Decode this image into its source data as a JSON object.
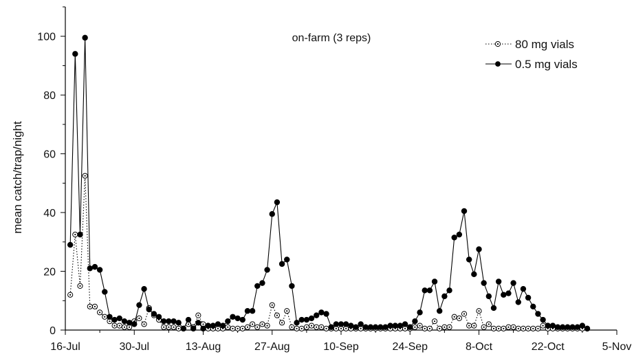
{
  "chart_data": {
    "type": "line",
    "annotation": "on-farm (3 reps)",
    "ylabel": "mean catch/trap/night",
    "xlabel": "",
    "xlim": [
      "2000-07-16",
      "2000-11-05"
    ],
    "ylim": [
      0,
      110
    ],
    "xticks": [
      {
        "date": "2000-07-16",
        "label": "16-Jul"
      },
      {
        "date": "2000-07-30",
        "label": "30-Jul"
      },
      {
        "date": "2000-08-13",
        "label": "13-Aug"
      },
      {
        "date": "2000-08-27",
        "label": "27-Aug"
      },
      {
        "date": "2000-09-10",
        "label": "10-Sep"
      },
      {
        "date": "2000-09-24",
        "label": "24-Sep"
      },
      {
        "date": "2000-10-08",
        "label": "8-Oct"
      },
      {
        "date": "2000-10-22",
        "label": "22-Oct"
      },
      {
        "date": "2000-11-05",
        "label": "5-Nov"
      }
    ],
    "yticks": [
      0,
      20,
      40,
      60,
      80,
      100
    ],
    "legend_position": "top-right",
    "grid": false,
    "series": [
      {
        "name": "80 mg vials",
        "style": "dotted",
        "marker": "open-circle",
        "color": "#000000",
        "points": [
          [
            "2000-07-17",
            12
          ],
          [
            "2000-07-18",
            32.5
          ],
          [
            "2000-07-19",
            15
          ],
          [
            "2000-07-20",
            52.5
          ],
          [
            "2000-07-21",
            8
          ],
          [
            "2000-07-22",
            8
          ],
          [
            "2000-07-23",
            6
          ],
          [
            "2000-07-24",
            4.5
          ],
          [
            "2000-07-25",
            3
          ],
          [
            "2000-07-26",
            1.5
          ],
          [
            "2000-07-27",
            1.5
          ],
          [
            "2000-07-28",
            1
          ],
          [
            "2000-07-29",
            1
          ],
          [
            "2000-07-30",
            3
          ],
          [
            "2000-07-31",
            4
          ],
          [
            "2000-08-01",
            2
          ],
          [
            "2000-08-02",
            7.5
          ],
          [
            "2000-08-03",
            5
          ],
          [
            "2000-08-04",
            3.5
          ],
          [
            "2000-08-05",
            1
          ],
          [
            "2000-08-06",
            1
          ],
          [
            "2000-08-07",
            1
          ],
          [
            "2000-08-08",
            0.5
          ],
          [
            "2000-08-09",
            0.5
          ],
          [
            "2000-08-10",
            2
          ],
          [
            "2000-08-11",
            1
          ],
          [
            "2000-08-12",
            5
          ],
          [
            "2000-08-13",
            2
          ],
          [
            "2000-08-14",
            0.5
          ],
          [
            "2000-08-15",
            0.5
          ],
          [
            "2000-08-16",
            0.5
          ],
          [
            "2000-08-17",
            0.5
          ],
          [
            "2000-08-18",
            1
          ],
          [
            "2000-08-19",
            0.5
          ],
          [
            "2000-08-20",
            0.5
          ],
          [
            "2000-08-21",
            0.5
          ],
          [
            "2000-08-22",
            1
          ],
          [
            "2000-08-23",
            2
          ],
          [
            "2000-08-24",
            1
          ],
          [
            "2000-08-25",
            2
          ],
          [
            "2000-08-26",
            1.5
          ],
          [
            "2000-08-27",
            8.5
          ],
          [
            "2000-08-28",
            5
          ],
          [
            "2000-08-29",
            2.5
          ],
          [
            "2000-08-30",
            6.5
          ],
          [
            "2000-08-31",
            1
          ],
          [
            "2000-09-01",
            0.5
          ],
          [
            "2000-09-02",
            0.5
          ],
          [
            "2000-09-03",
            1
          ],
          [
            "2000-09-04",
            1.5
          ],
          [
            "2000-09-05",
            1
          ],
          [
            "2000-09-06",
            1
          ],
          [
            "2000-09-07",
            0.5
          ],
          [
            "2000-09-08",
            0.5
          ],
          [
            "2000-09-09",
            0.5
          ],
          [
            "2000-09-10",
            0.5
          ],
          [
            "2000-09-11",
            0.5
          ],
          [
            "2000-09-12",
            0.5
          ],
          [
            "2000-09-13",
            0.5
          ],
          [
            "2000-09-14",
            0.5
          ],
          [
            "2000-09-15",
            0.5
          ],
          [
            "2000-09-16",
            0.5
          ],
          [
            "2000-09-17",
            0.5
          ],
          [
            "2000-09-18",
            0.5
          ],
          [
            "2000-09-19",
            0.5
          ],
          [
            "2000-09-20",
            0.5
          ],
          [
            "2000-09-21",
            0.5
          ],
          [
            "2000-09-22",
            0.5
          ],
          [
            "2000-09-23",
            0.5
          ],
          [
            "2000-09-24",
            0.5
          ],
          [
            "2000-09-25",
            1
          ],
          [
            "2000-09-26",
            1.5
          ],
          [
            "2000-09-27",
            0.5
          ],
          [
            "2000-09-28",
            0.5
          ],
          [
            "2000-09-29",
            3
          ],
          [
            "2000-09-30",
            0.5
          ],
          [
            "2000-10-01",
            1
          ],
          [
            "2000-10-02",
            1
          ],
          [
            "2000-10-03",
            4.5
          ],
          [
            "2000-10-04",
            4
          ],
          [
            "2000-10-05",
            5.5
          ],
          [
            "2000-10-06",
            1.5
          ],
          [
            "2000-10-07",
            1.5
          ],
          [
            "2000-10-08",
            6.5
          ],
          [
            "2000-10-09",
            1
          ],
          [
            "2000-10-10",
            2
          ],
          [
            "2000-10-11",
            0.5
          ],
          [
            "2000-10-12",
            0.5
          ],
          [
            "2000-10-13",
            0.5
          ],
          [
            "2000-10-14",
            1
          ],
          [
            "2000-10-15",
            1
          ],
          [
            "2000-10-16",
            0.5
          ],
          [
            "2000-10-17",
            0.5
          ],
          [
            "2000-10-18",
            0.5
          ],
          [
            "2000-10-19",
            0.5
          ],
          [
            "2000-10-20",
            0.5
          ],
          [
            "2000-10-21",
            1.5
          ],
          [
            "2000-10-22",
            0.5
          ],
          [
            "2000-10-23",
            0.5
          ],
          [
            "2000-10-24",
            0.5
          ],
          [
            "2000-10-25",
            0.5
          ],
          [
            "2000-10-26",
            0.5
          ],
          [
            "2000-10-27",
            0.5
          ],
          [
            "2000-10-28",
            0.5
          ],
          [
            "2000-10-29",
            0.5
          ],
          [
            "2000-10-30",
            0.5
          ]
        ]
      },
      {
        "name": "0.5 mg vials",
        "style": "solid",
        "marker": "filled-circle",
        "color": "#000000",
        "points": [
          [
            "2000-07-17",
            29
          ],
          [
            "2000-07-18",
            94
          ],
          [
            "2000-07-19",
            32.5
          ],
          [
            "2000-07-20",
            99.5
          ],
          [
            "2000-07-21",
            21
          ],
          [
            "2000-07-22",
            21.5
          ],
          [
            "2000-07-23",
            20.5
          ],
          [
            "2000-07-24",
            13
          ],
          [
            "2000-07-25",
            4.5
          ],
          [
            "2000-07-26",
            3.5
          ],
          [
            "2000-07-27",
            4
          ],
          [
            "2000-07-28",
            3
          ],
          [
            "2000-07-29",
            2.5
          ],
          [
            "2000-07-30",
            2
          ],
          [
            "2000-07-31",
            8.5
          ],
          [
            "2000-08-01",
            14
          ],
          [
            "2000-08-02",
            7
          ],
          [
            "2000-08-03",
            5.5
          ],
          [
            "2000-08-04",
            4.5
          ],
          [
            "2000-08-05",
            3
          ],
          [
            "2000-08-06",
            3
          ],
          [
            "2000-08-07",
            3
          ],
          [
            "2000-08-08",
            2.5
          ],
          [
            "2000-08-09",
            0.5
          ],
          [
            "2000-08-10",
            3.5
          ],
          [
            "2000-08-11",
            0.5
          ],
          [
            "2000-08-12",
            2.5
          ],
          [
            "2000-08-13",
            0.5
          ],
          [
            "2000-08-14",
            1.5
          ],
          [
            "2000-08-15",
            1.5
          ],
          [
            "2000-08-16",
            2
          ],
          [
            "2000-08-17",
            1.5
          ],
          [
            "2000-08-18",
            3
          ],
          [
            "2000-08-19",
            4.5
          ],
          [
            "2000-08-20",
            4
          ],
          [
            "2000-08-21",
            3.5
          ],
          [
            "2000-08-22",
            6.5
          ],
          [
            "2000-08-23",
            6.5
          ],
          [
            "2000-08-24",
            15
          ],
          [
            "2000-08-25",
            16
          ],
          [
            "2000-08-26",
            20.5
          ],
          [
            "2000-08-27",
            39.5
          ],
          [
            "2000-08-28",
            43.5
          ],
          [
            "2000-08-29",
            22.5
          ],
          [
            "2000-08-30",
            24
          ],
          [
            "2000-08-31",
            15
          ],
          [
            "2000-09-01",
            2.5
          ],
          [
            "2000-09-02",
            3.5
          ],
          [
            "2000-09-03",
            3.5
          ],
          [
            "2000-09-04",
            4
          ],
          [
            "2000-09-05",
            5
          ],
          [
            "2000-09-06",
            6
          ],
          [
            "2000-09-07",
            5.5
          ],
          [
            "2000-09-08",
            1
          ],
          [
            "2000-09-09",
            2
          ],
          [
            "2000-09-10",
            2
          ],
          [
            "2000-09-11",
            2
          ],
          [
            "2000-09-12",
            1.5
          ],
          [
            "2000-09-13",
            1
          ],
          [
            "2000-09-14",
            2
          ],
          [
            "2000-09-15",
            1
          ],
          [
            "2000-09-16",
            1
          ],
          [
            "2000-09-17",
            1
          ],
          [
            "2000-09-18",
            1
          ],
          [
            "2000-09-19",
            1
          ],
          [
            "2000-09-20",
            1.5
          ],
          [
            "2000-09-21",
            1.5
          ],
          [
            "2000-09-22",
            1.5
          ],
          [
            "2000-09-23",
            2
          ],
          [
            "2000-09-24",
            1
          ],
          [
            "2000-09-25",
            3
          ],
          [
            "2000-09-26",
            6
          ],
          [
            "2000-09-27",
            13.5
          ],
          [
            "2000-09-28",
            13.5
          ],
          [
            "2000-09-29",
            16.5
          ],
          [
            "2000-09-30",
            6.5
          ],
          [
            "2000-10-01",
            11.5
          ],
          [
            "2000-10-02",
            13.5
          ],
          [
            "2000-10-03",
            31.5
          ],
          [
            "2000-10-04",
            32.5
          ],
          [
            "2000-10-05",
            40.5
          ],
          [
            "2000-10-06",
            24
          ],
          [
            "2000-10-07",
            19
          ],
          [
            "2000-10-08",
            27.5
          ],
          [
            "2000-10-09",
            16
          ],
          [
            "2000-10-10",
            11.5
          ],
          [
            "2000-10-11",
            7.5
          ],
          [
            "2000-10-12",
            16.5
          ],
          [
            "2000-10-13",
            12
          ],
          [
            "2000-10-14",
            12.5
          ],
          [
            "2000-10-15",
            16
          ],
          [
            "2000-10-16",
            9.5
          ],
          [
            "2000-10-17",
            14
          ],
          [
            "2000-10-18",
            11
          ],
          [
            "2000-10-19",
            8
          ],
          [
            "2000-10-20",
            5.5
          ],
          [
            "2000-10-21",
            3.5
          ],
          [
            "2000-10-22",
            1.5
          ],
          [
            "2000-10-23",
            1.5
          ],
          [
            "2000-10-24",
            1
          ],
          [
            "2000-10-25",
            1
          ],
          [
            "2000-10-26",
            1
          ],
          [
            "2000-10-27",
            1
          ],
          [
            "2000-10-28",
            1
          ],
          [
            "2000-10-29",
            1.5
          ],
          [
            "2000-10-30",
            0.5
          ]
        ]
      }
    ]
  }
}
